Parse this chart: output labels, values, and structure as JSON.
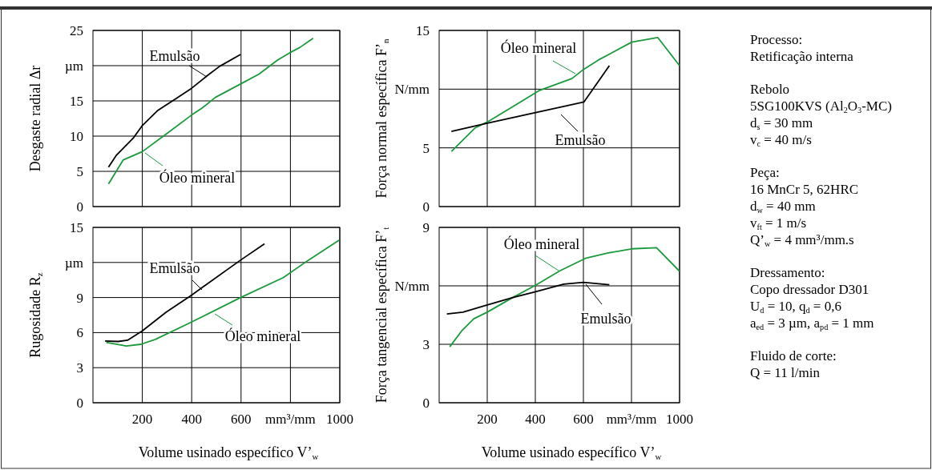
{
  "chart_data": [
    {
      "type": "line",
      "ylabel": "Desgaste radial Δr",
      "xlim": [
        0,
        1000
      ],
      "xticks": [
        200,
        400,
        600,
        800,
        1000
      ],
      "ylim": [
        0,
        25
      ],
      "yticks": [
        0,
        5,
        10,
        15,
        {
          "value": 20,
          "label": "µm"
        },
        25
      ],
      "grid": true,
      "tick_labels": "y",
      "series": [
        {
          "name": "Emulsão",
          "color": "#000000",
          "x": [
            63,
            95,
            165,
            200,
            261,
            336,
            400,
            464,
            513,
            598
          ],
          "values": [
            5.6,
            7.3,
            9.8,
            11.5,
            13.6,
            15.3,
            16.8,
            18.6,
            19.9,
            21.6
          ]
        },
        {
          "name": "Óleo mineral",
          "color": "#1a9a3c",
          "x": [
            63,
            122,
            200,
            293,
            400,
            443,
            496,
            598,
            673,
            748,
            796,
            839,
            892
          ],
          "values": [
            3.2,
            6.6,
            7.8,
            10.2,
            13.0,
            14.0,
            15.5,
            17.4,
            18.8,
            20.8,
            21.8,
            22.6,
            23.9
          ]
        }
      ]
    },
    {
      "type": "line",
      "ylabel": "Força normal específica F’$_{n}$",
      "xlim": [
        0,
        1000
      ],
      "xticks": [
        200,
        400,
        600,
        800,
        1000
      ],
      "ylim": [
        0,
        15
      ],
      "yticks": [
        0,
        5,
        {
          "value": 10,
          "label": "N/mm"
        },
        15
      ],
      "grid": true,
      "tick_labels": "y",
      "series": [
        {
          "name": "Óleo mineral",
          "color": "#1a9a3c",
          "x": [
            51,
            150,
            200,
            306,
            418,
            552,
            602,
            664,
            801,
            909,
            1000
          ],
          "values": [
            4.7,
            6.7,
            7.2,
            8.5,
            9.9,
            10.9,
            11.7,
            12.5,
            14.0,
            14.4,
            12.0
          ]
        },
        {
          "name": "Emulsão",
          "color": "#000000",
          "x": [
            51,
            200,
            401,
            602,
            708
          ],
          "values": [
            6.4,
            7.1,
            8.0,
            8.9,
            12.0
          ]
        }
      ]
    },
    {
      "type": "line",
      "ylabel": "Rugosidade R$_{z}$",
      "xlabel": "Volume usinado específico V’$_{w}$",
      "xlim": [
        0,
        1000
      ],
      "xticks": [
        200,
        400,
        600,
        {
          "value": 800,
          "label": "mm³/mm"
        },
        1000
      ],
      "ylim": [
        0,
        15
      ],
      "yticks": [
        0,
        3,
        6,
        9,
        {
          "value": 12,
          "label": "µm"
        },
        15
      ],
      "grid": true,
      "series": [
        {
          "name": "Emulsão",
          "color": "#000000",
          "x": [
            49,
            102,
            140,
            200,
            296,
            399,
            598,
            695
          ],
          "values": [
            5.28,
            5.24,
            5.35,
            6.15,
            7.74,
            9.2,
            12.2,
            13.6
          ]
        },
        {
          "name": "Óleo mineral",
          "color": "#1a9a3c",
          "x": [
            54,
            135,
            194,
            253,
            399,
            598,
            771,
            873,
            997
          ],
          "values": [
            5.17,
            4.85,
            5.0,
            5.42,
            6.9,
            9.0,
            10.7,
            12.2,
            13.9
          ]
        }
      ]
    },
    {
      "type": "line",
      "ylabel": "Força tangencial específica F’$_{t}$",
      "xlabel": "Volume usinado específico V’$_{w}$",
      "xlim": [
        0,
        1000
      ],
      "xticks": [
        200,
        400,
        600,
        {
          "value": 800,
          "label": "mm³/mm"
        },
        1000
      ],
      "ylim": [
        0,
        9
      ],
      "yticks": [
        0,
        3,
        {
          "value": 6,
          "label": "N/mm"
        },
        9
      ],
      "grid": true,
      "series": [
        {
          "name": "Óleo mineral",
          "color": "#1a9a3c",
          "x": [
            44,
            94,
            144,
            200,
            306,
            401,
            502,
            608,
            703,
            801,
            904,
            1000
          ],
          "values": [
            2.87,
            3.69,
            4.31,
            4.65,
            5.4,
            6.03,
            6.77,
            7.41,
            7.69,
            7.9,
            7.96,
            6.75
          ]
        },
        {
          "name": "Emulsão",
          "color": "#000000",
          "x": [
            32,
            99,
            200,
            306,
            401,
            518,
            600,
            708
          ],
          "values": [
            4.56,
            4.65,
            5.02,
            5.4,
            5.7,
            6.09,
            6.18,
            6.06
          ]
        }
      ]
    },
    {
      "type": "other",
      "annotations": [
        "Processo:",
        "Retificação interna",
        "Rebolo",
        "5SG100KVS (Al$_{2}$O$_{3}$-MC)",
        "d$_{s}$ = 30 mm",
        "v$_{c}$ = 40 m/s",
        "Peça:",
        "16 MnCr 5, 62HRC",
        "d$_{w}$ = 40 mm",
        "v$_{ft}$ = 1 m/s",
        "Q’$_{w}$ = 4 mm³/mm.s",
        "Dressamento:",
        "Copo dressador D301",
        "U$_{d}$ = 10, q$_{d}$ = 0,6",
        "a$_{ed}$ = 3 µm, a$_{pd}$ = 1 mm",
        "Fluido de corte:",
        "Q = 11 l/min"
      ]
    }
  ]
}
